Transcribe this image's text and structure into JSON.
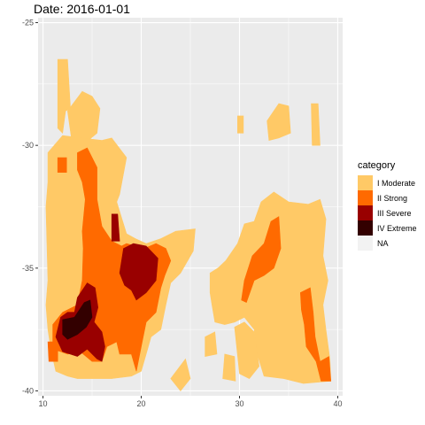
{
  "title": "Date: 2016-01-01",
  "colors": {
    "I Moderate": "#FFC966",
    "II Strong": "#FF6A00",
    "III Severe": "#990000",
    "IV Extreme": "#330000",
    "NA": "#F2F2F2",
    "panel": "#EBEBEB",
    "grid": "#FFFFFF"
  },
  "chart_data": {
    "type": "heatmap",
    "title": "Date: 2016-01-01",
    "xlabel": "",
    "ylabel": "",
    "xlim": [
      9.5,
      40.5
    ],
    "ylim": [
      -40.2,
      -24.8
    ],
    "x_ticks": [
      10,
      20,
      30,
      40
    ],
    "y_ticks": [
      -25,
      -30,
      -35,
      -40
    ],
    "x_tick_labels": [
      "10",
      "20",
      "30",
      "40"
    ],
    "y_tick_labels": [
      "-25",
      "-30",
      "-35",
      "-40"
    ],
    "grid": true,
    "legend": {
      "title": "category",
      "placement": "right",
      "entries": [
        "I Moderate",
        "II Strong",
        "III Severe",
        "IV Extreme",
        "NA"
      ]
    },
    "regions": [
      {
        "category": "I Moderate",
        "polygon": [
          [
            11.5,
            -26.5
          ],
          [
            12.5,
            -26.5
          ],
          [
            12.8,
            -28.5
          ],
          [
            12.3,
            -28.6
          ],
          [
            12,
            -29.5
          ],
          [
            11.5,
            -29.3
          ]
        ]
      },
      {
        "category": "I Moderate",
        "polygon": [
          [
            12.5,
            -28.6
          ],
          [
            14,
            -27.8
          ],
          [
            15,
            -28
          ],
          [
            15.8,
            -28.5
          ],
          [
            15.5,
            -29.5
          ],
          [
            14,
            -30
          ],
          [
            13,
            -30
          ]
        ]
      },
      {
        "category": "I Moderate",
        "polygon": [
          [
            10.5,
            -30.3
          ],
          [
            12,
            -29.6
          ],
          [
            14,
            -29.7
          ],
          [
            16,
            -29.8
          ],
          [
            17,
            -29.7
          ],
          [
            18.5,
            -30.5
          ],
          [
            17.8,
            -32
          ],
          [
            17.5,
            -32.3
          ],
          [
            18.5,
            -33.6
          ],
          [
            19.4,
            -33.8
          ],
          [
            20.5,
            -34
          ],
          [
            22,
            -33.8
          ],
          [
            23.5,
            -33.5
          ],
          [
            25.5,
            -33.4
          ],
          [
            25.3,
            -34.3
          ],
          [
            24,
            -35.2
          ],
          [
            23,
            -35.6
          ],
          [
            22.5,
            -36.5
          ],
          [
            22,
            -37.5
          ],
          [
            21,
            -37.8
          ],
          [
            20.5,
            -38.5
          ],
          [
            20,
            -39.2
          ],
          [
            19,
            -39.4
          ],
          [
            17,
            -39.5
          ],
          [
            13.5,
            -39.5
          ],
          [
            12.5,
            -39.4
          ],
          [
            11.3,
            -39.2
          ],
          [
            10.8,
            -38.3
          ],
          [
            10.5,
            -37.5
          ],
          [
            10.3,
            -36.5
          ],
          [
            10.5,
            -35.5
          ],
          [
            10.4,
            -34
          ],
          [
            10.3,
            -32.5
          ],
          [
            10.5,
            -31.5
          ]
        ]
      },
      {
        "category": "I Moderate",
        "polygon": [
          [
            23,
            -39.5
          ],
          [
            24.5,
            -38.7
          ],
          [
            25,
            -39.5
          ],
          [
            24,
            -40
          ]
        ]
      },
      {
        "category": "I Moderate",
        "polygon": [
          [
            27,
            -35.2
          ],
          [
            27.8,
            -35
          ],
          [
            28.6,
            -34.7
          ],
          [
            29.8,
            -34
          ],
          [
            30.5,
            -33.2
          ],
          [
            31.5,
            -33.1
          ],
          [
            32.2,
            -32.3
          ],
          [
            33.5,
            -31.9
          ],
          [
            35,
            -32.3
          ],
          [
            37,
            -32.4
          ],
          [
            38.2,
            -32.2
          ],
          [
            38.8,
            -33
          ],
          [
            38.5,
            -34.5
          ],
          [
            39,
            -35.5
          ],
          [
            38.5,
            -36.5
          ],
          [
            38.8,
            -37.5
          ],
          [
            39.2,
            -38.7
          ],
          [
            39.3,
            -39.6
          ],
          [
            36.5,
            -39.7
          ],
          [
            34.5,
            -39.5
          ],
          [
            32.5,
            -39.4
          ],
          [
            31.8,
            -38.5
          ],
          [
            31.5,
            -37.5
          ],
          [
            30.5,
            -37
          ],
          [
            29.5,
            -37.2
          ],
          [
            28.5,
            -37.3
          ],
          [
            27.5,
            -37.2
          ],
          [
            27.2,
            -36.5
          ],
          [
            27,
            -36
          ]
        ]
      },
      {
        "category": "I Moderate",
        "polygon": [
          [
            29.5,
            -37.4
          ],
          [
            30.5,
            -37.2
          ],
          [
            31.5,
            -37.6
          ],
          [
            32,
            -39
          ],
          [
            31,
            -39.5
          ],
          [
            30,
            -39.3
          ]
        ]
      },
      {
        "category": "I Moderate",
        "polygon": [
          [
            28.5,
            -38.5
          ],
          [
            29.5,
            -38.6
          ],
          [
            29.6,
            -39.6
          ],
          [
            28.3,
            -39.5
          ]
        ]
      },
      {
        "category": "I Moderate",
        "polygon": [
          [
            26.5,
            -37.8
          ],
          [
            27.5,
            -37.6
          ],
          [
            27.7,
            -38.5
          ],
          [
            26.5,
            -38.6
          ]
        ]
      },
      {
        "category": "I Moderate",
        "polygon": [
          [
            32.8,
            -29
          ],
          [
            34,
            -28.3
          ],
          [
            35,
            -28.4
          ],
          [
            35.2,
            -29.5
          ],
          [
            34,
            -29.7
          ],
          [
            33,
            -29.8
          ]
        ]
      },
      {
        "category": "I Moderate",
        "polygon": [
          [
            29.8,
            -28.8
          ],
          [
            30.4,
            -28.8
          ],
          [
            30.4,
            -29.5
          ],
          [
            29.8,
            -29.5
          ]
        ]
      },
      {
        "category": "I Moderate",
        "polygon": [
          [
            37.3,
            -28.3
          ],
          [
            38,
            -28.3
          ],
          [
            38.2,
            -30
          ],
          [
            37.4,
            -30
          ]
        ]
      },
      {
        "category": "II Strong",
        "polygon": [
          [
            13.5,
            -30.3
          ],
          [
            14.5,
            -30.1
          ],
          [
            15.5,
            -30.9
          ],
          [
            15.5,
            -32.2
          ],
          [
            16,
            -33.3
          ],
          [
            17,
            -33.9
          ],
          [
            18,
            -34.1
          ],
          [
            18.5,
            -34
          ],
          [
            20.3,
            -34.2
          ],
          [
            21.5,
            -34
          ],
          [
            22.5,
            -34.2
          ],
          [
            23,
            -34.7
          ],
          [
            22.4,
            -35.3
          ],
          [
            22,
            -35.8
          ],
          [
            21.5,
            -36.8
          ],
          [
            20.5,
            -37.2
          ],
          [
            20,
            -38.2
          ],
          [
            19.5,
            -39.2
          ],
          [
            19,
            -38.5
          ],
          [
            17.8,
            -38.5
          ],
          [
            17.5,
            -38
          ],
          [
            16.5,
            -38.2
          ],
          [
            16,
            -38.8
          ],
          [
            15,
            -38.8
          ],
          [
            13.8,
            -38.4
          ],
          [
            12.5,
            -38.5
          ],
          [
            11.8,
            -38.4
          ],
          [
            11,
            -38.3
          ],
          [
            11,
            -37.3
          ],
          [
            12,
            -36.8
          ],
          [
            13.5,
            -36.5
          ],
          [
            14,
            -35.5
          ],
          [
            14.1,
            -34.2
          ],
          [
            14,
            -33.5
          ],
          [
            14.3,
            -32.2
          ],
          [
            14,
            -31.5
          ],
          [
            13.5,
            -31
          ]
        ]
      },
      {
        "category": "II Strong",
        "polygon": [
          [
            11.5,
            -30.5
          ],
          [
            12.4,
            -30.5
          ],
          [
            12.4,
            -31.1
          ],
          [
            11.5,
            -31.1
          ]
        ]
      },
      {
        "category": "II Strong",
        "polygon": [
          [
            10.5,
            -38
          ],
          [
            11.5,
            -38
          ],
          [
            11.5,
            -38.8
          ],
          [
            10.6,
            -38.8
          ]
        ]
      },
      {
        "category": "II Strong",
        "polygon": [
          [
            30.5,
            -35.5
          ],
          [
            31.3,
            -34.5
          ],
          [
            32.5,
            -34
          ],
          [
            33.2,
            -33.1
          ],
          [
            34,
            -32.9
          ],
          [
            34.2,
            -34.2
          ],
          [
            33.5,
            -35
          ],
          [
            32.5,
            -35.3
          ],
          [
            31.5,
            -35.5
          ],
          [
            30.7,
            -36.4
          ],
          [
            30.2,
            -36.3
          ]
        ]
      },
      {
        "category": "II Strong",
        "polygon": [
          [
            36.2,
            -36
          ],
          [
            37.2,
            -35.8
          ],
          [
            37.5,
            -36.8
          ],
          [
            37.7,
            -37.8
          ],
          [
            38.2,
            -38.8
          ],
          [
            39.1,
            -38.6
          ],
          [
            39.3,
            -39.6
          ],
          [
            38.3,
            -39.6
          ],
          [
            37.8,
            -38.8
          ],
          [
            36.8,
            -38.2
          ],
          [
            36.6,
            -37.3
          ],
          [
            36.3,
            -36.7
          ]
        ]
      },
      {
        "category": "III Severe",
        "polygon": [
          [
            18.2,
            -34.2
          ],
          [
            19.2,
            -34
          ],
          [
            20.5,
            -34.1
          ],
          [
            21.7,
            -34.6
          ],
          [
            21.5,
            -35.5
          ],
          [
            20.5,
            -36
          ],
          [
            19.5,
            -36.3
          ],
          [
            19,
            -35.9
          ],
          [
            18.3,
            -35.7
          ],
          [
            17.8,
            -35.2
          ]
        ]
      },
      {
        "category": "III Severe",
        "polygon": [
          [
            17,
            -32.8
          ],
          [
            17.6,
            -32.8
          ],
          [
            17.8,
            -33.9
          ],
          [
            17,
            -33.9
          ]
        ]
      },
      {
        "category": "III Severe",
        "polygon": [
          [
            13.5,
            -36.2
          ],
          [
            14.5,
            -35.6
          ],
          [
            15.3,
            -35.8
          ],
          [
            15.6,
            -36.6
          ],
          [
            15.2,
            -37.2
          ],
          [
            16,
            -37.6
          ],
          [
            16.3,
            -38.2
          ],
          [
            16,
            -38.8
          ],
          [
            15.5,
            -38.7
          ],
          [
            14.5,
            -38.3
          ],
          [
            13.5,
            -38.6
          ],
          [
            12,
            -38.4
          ],
          [
            11.3,
            -37.8
          ],
          [
            11.8,
            -37
          ],
          [
            12.5,
            -36.8
          ],
          [
            13.2,
            -36.8
          ]
        ]
      },
      {
        "category": "IV Extreme",
        "polygon": [
          [
            14.2,
            -36.4
          ],
          [
            14.8,
            -36.3
          ],
          [
            15,
            -37
          ],
          [
            14.4,
            -37.4
          ],
          [
            13.5,
            -37.7
          ],
          [
            12.5,
            -37.9
          ],
          [
            12,
            -37.7
          ],
          [
            12,
            -37.1
          ],
          [
            13.2,
            -37
          ]
        ]
      }
    ]
  },
  "legend_title": "category",
  "legend_labels": [
    "I Moderate",
    "II Strong",
    "III Severe",
    "IV Extreme",
    "NA"
  ]
}
